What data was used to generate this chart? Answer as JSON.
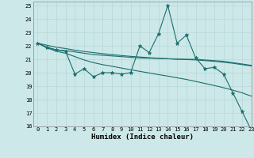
{
  "xlabel": "Humidex (Indice chaleur)",
  "bg_color": "#cce8e8",
  "grid_color": "#b8d8d8",
  "line_color": "#1a6e6e",
  "xlim": [
    -0.5,
    23
  ],
  "ylim": [
    16,
    25.3
  ],
  "xticks": [
    0,
    1,
    2,
    3,
    4,
    5,
    6,
    7,
    8,
    9,
    10,
    11,
    12,
    13,
    14,
    15,
    16,
    17,
    18,
    19,
    20,
    21,
    22,
    23
  ],
  "yticks": [
    16,
    17,
    18,
    19,
    20,
    21,
    22,
    23,
    24,
    25
  ],
  "series1": [
    22.2,
    21.9,
    21.7,
    21.6,
    19.9,
    20.3,
    19.7,
    20.0,
    20.0,
    19.9,
    20.0,
    22.0,
    21.5,
    22.9,
    25.0,
    22.2,
    22.8,
    21.1,
    20.3,
    20.4,
    19.9,
    18.5,
    17.1,
    15.7
  ],
  "series2": [
    22.2,
    21.9,
    21.7,
    21.65,
    21.55,
    21.45,
    21.35,
    21.3,
    21.25,
    21.2,
    21.15,
    21.1,
    21.08,
    21.06,
    21.04,
    21.02,
    21.0,
    21.0,
    20.95,
    20.9,
    20.85,
    20.75,
    20.65,
    20.55
  ],
  "series3": [
    22.2,
    22.05,
    21.9,
    21.8,
    21.68,
    21.58,
    21.5,
    21.42,
    21.35,
    21.28,
    21.22,
    21.17,
    21.12,
    21.08,
    21.04,
    21.0,
    20.98,
    20.95,
    20.9,
    20.85,
    20.78,
    20.7,
    20.6,
    20.5
  ],
  "series4": [
    22.2,
    21.85,
    21.6,
    21.45,
    21.2,
    20.95,
    20.75,
    20.6,
    20.48,
    20.35,
    20.22,
    20.1,
    19.98,
    19.86,
    19.75,
    19.62,
    19.5,
    19.35,
    19.2,
    19.05,
    18.88,
    18.7,
    18.5,
    18.25
  ]
}
